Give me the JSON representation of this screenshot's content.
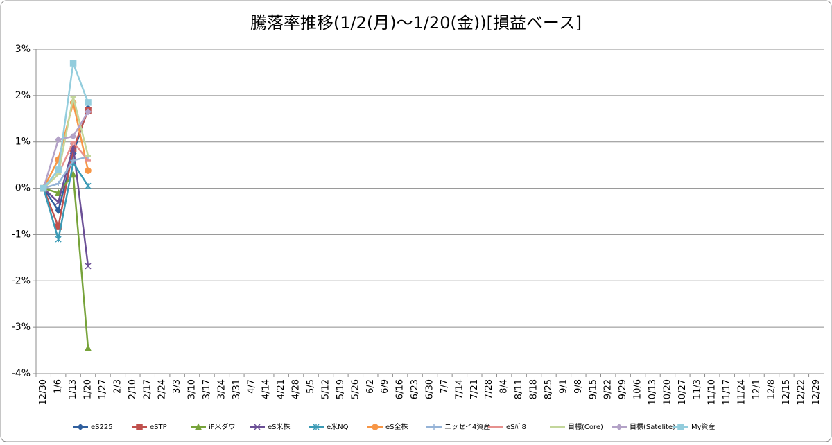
{
  "chart_data": {
    "type": "line",
    "title": "騰落率推移(1/2(月)～1/20(金))[損益ベース]",
    "categories": [
      "12/30",
      "1/6",
      "1/13",
      "1/20",
      "1/27",
      "2/3",
      "2/10",
      "2/17",
      "2/24",
      "3/3",
      "3/10",
      "3/17",
      "3/24",
      "3/31",
      "4/7",
      "4/14",
      "4/21",
      "4/28",
      "5/5",
      "5/12",
      "5/19",
      "5/26",
      "6/2",
      "6/9",
      "6/16",
      "6/23",
      "6/30",
      "7/7",
      "7/14",
      "7/21",
      "7/28",
      "8/4",
      "8/11",
      "8/18",
      "8/25",
      "9/1",
      "9/8",
      "9/15",
      "9/22",
      "9/29",
      "10/6",
      "10/13",
      "10/20",
      "10/27",
      "11/3",
      "11/10",
      "11/17",
      "11/24",
      "12/1",
      "12/8",
      "12/15",
      "12/22",
      "12/29"
    ],
    "ylim": [
      -4,
      3
    ],
    "yticks": [
      {
        "value": -4,
        "label": "-4%"
      },
      {
        "value": -3,
        "label": "-3%"
      },
      {
        "value": -2,
        "label": "-2%"
      },
      {
        "value": -1,
        "label": "-1%"
      },
      {
        "value": 0,
        "label": "0%"
      },
      {
        "value": 1,
        "label": "1%"
      },
      {
        "value": 2,
        "label": "2%"
      },
      {
        "value": 3,
        "label": "3%"
      }
    ],
    "grid": true,
    "legend": "bottom",
    "series": [
      {
        "name": "eS225",
        "color": "#2f5f9e",
        "values": [
          0,
          -0.48,
          0.75,
          1.73,
          null,
          null,
          null,
          null,
          null,
          null,
          null,
          null,
          null,
          null,
          null,
          null,
          null,
          null,
          null,
          null,
          null,
          null,
          null,
          null,
          null,
          null,
          null,
          null,
          null,
          null,
          null,
          null,
          null,
          null,
          null,
          null,
          null,
          null,
          null,
          null,
          null,
          null,
          null,
          null,
          null,
          null,
          null,
          null,
          null,
          null,
          null,
          null,
          null
        ]
      },
      {
        "name": "eSTP",
        "color": "#c0504d",
        "values": [
          0,
          -0.83,
          0.85,
          1.68,
          null,
          null,
          null,
          null,
          null,
          null,
          null,
          null,
          null,
          null,
          null,
          null,
          null,
          null,
          null,
          null,
          null,
          null,
          null,
          null,
          null,
          null,
          null,
          null,
          null,
          null,
          null,
          null,
          null,
          null,
          null,
          null,
          null,
          null,
          null,
          null,
          null,
          null,
          null,
          null,
          null,
          null,
          null,
          null,
          null,
          null,
          null,
          null,
          null
        ]
      },
      {
        "name": "iF米ダウ",
        "color": "#77a33a",
        "values": [
          0,
          -0.1,
          0.3,
          -3.45,
          null,
          null,
          null,
          null,
          null,
          null,
          null,
          null,
          null,
          null,
          null,
          null,
          null,
          null,
          null,
          null,
          null,
          null,
          null,
          null,
          null,
          null,
          null,
          null,
          null,
          null,
          null,
          null,
          null,
          null,
          null,
          null,
          null,
          null,
          null,
          null,
          null,
          null,
          null,
          null,
          null,
          null,
          null,
          null,
          null,
          null,
          null,
          null,
          null
        ]
      },
      {
        "name": "eS米株",
        "color": "#6b4f96",
        "values": [
          0,
          -0.3,
          0.9,
          -1.68,
          null,
          null,
          null,
          null,
          null,
          null,
          null,
          null,
          null,
          null,
          null,
          null,
          null,
          null,
          null,
          null,
          null,
          null,
          null,
          null,
          null,
          null,
          null,
          null,
          null,
          null,
          null,
          null,
          null,
          null,
          null,
          null,
          null,
          null,
          null,
          null,
          null,
          null,
          null,
          null,
          null,
          null,
          null,
          null,
          null,
          null,
          null,
          null,
          null
        ]
      },
      {
        "name": "e米NQ",
        "color": "#3a9ab5",
        "values": [
          0,
          -1.1,
          0.55,
          0.05,
          null,
          null,
          null,
          null,
          null,
          null,
          null,
          null,
          null,
          null,
          null,
          null,
          null,
          null,
          null,
          null,
          null,
          null,
          null,
          null,
          null,
          null,
          null,
          null,
          null,
          null,
          null,
          null,
          null,
          null,
          null,
          null,
          null,
          null,
          null,
          null,
          null,
          null,
          null,
          null,
          null,
          null,
          null,
          null,
          null,
          null,
          null,
          null,
          null
        ]
      },
      {
        "name": "eS全株",
        "color": "#f79646",
        "values": [
          0,
          0.62,
          1.85,
          0.38,
          null,
          null,
          null,
          null,
          null,
          null,
          null,
          null,
          null,
          null,
          null,
          null,
          null,
          null,
          null,
          null,
          null,
          null,
          null,
          null,
          null,
          null,
          null,
          null,
          null,
          null,
          null,
          null,
          null,
          null,
          null,
          null,
          null,
          null,
          null,
          null,
          null,
          null,
          null,
          null,
          null,
          null,
          null,
          null,
          null,
          null,
          null,
          null,
          null
        ]
      },
      {
        "name": "ニッセイ4資産",
        "color": "#95b3d7",
        "values": [
          0,
          0.1,
          0.6,
          0.68,
          null,
          null,
          null,
          null,
          null,
          null,
          null,
          null,
          null,
          null,
          null,
          null,
          null,
          null,
          null,
          null,
          null,
          null,
          null,
          null,
          null,
          null,
          null,
          null,
          null,
          null,
          null,
          null,
          null,
          null,
          null,
          null,
          null,
          null,
          null,
          null,
          null,
          null,
          null,
          null,
          null,
          null,
          null,
          null,
          null,
          null,
          null,
          null,
          null
        ]
      },
      {
        "name": "eSﾊﾞ8",
        "color": "#e6918e",
        "values": [
          0,
          0.3,
          1.0,
          0.6,
          null,
          null,
          null,
          null,
          null,
          null,
          null,
          null,
          null,
          null,
          null,
          null,
          null,
          null,
          null,
          null,
          null,
          null,
          null,
          null,
          null,
          null,
          null,
          null,
          null,
          null,
          null,
          null,
          null,
          null,
          null,
          null,
          null,
          null,
          null,
          null,
          null,
          null,
          null,
          null,
          null,
          null,
          null,
          null,
          null,
          null,
          null,
          null,
          null
        ]
      },
      {
        "name": "目標(Core)",
        "color": "#c3d69b",
        "values": [
          0,
          0.3,
          1.97,
          0.7,
          null,
          null,
          null,
          null,
          null,
          null,
          null,
          null,
          null,
          null,
          null,
          null,
          null,
          null,
          null,
          null,
          null,
          null,
          null,
          null,
          null,
          null,
          null,
          null,
          null,
          null,
          null,
          null,
          null,
          null,
          null,
          null,
          null,
          null,
          null,
          null,
          null,
          null,
          null,
          null,
          null,
          null,
          null,
          null,
          null,
          null,
          null,
          null,
          null
        ]
      },
      {
        "name": "目標(Satelite)",
        "color": "#b3a2c7",
        "values": [
          0,
          1.05,
          1.12,
          1.65,
          null,
          null,
          null,
          null,
          null,
          null,
          null,
          null,
          null,
          null,
          null,
          null,
          null,
          null,
          null,
          null,
          null,
          null,
          null,
          null,
          null,
          null,
          null,
          null,
          null,
          null,
          null,
          null,
          null,
          null,
          null,
          null,
          null,
          null,
          null,
          null,
          null,
          null,
          null,
          null,
          null,
          null,
          null,
          null,
          null,
          null,
          null,
          null,
          null
        ]
      },
      {
        "name": "My資産",
        "color": "#93cddd",
        "values": [
          0,
          0.4,
          2.7,
          1.85,
          null,
          null,
          null,
          null,
          null,
          null,
          null,
          null,
          null,
          null,
          null,
          null,
          null,
          null,
          null,
          null,
          null,
          null,
          null,
          null,
          null,
          null,
          null,
          null,
          null,
          null,
          null,
          null,
          null,
          null,
          null,
          null,
          null,
          null,
          null,
          null,
          null,
          null,
          null,
          null,
          null,
          null,
          null,
          null,
          null,
          null,
          null,
          null,
          null
        ]
      }
    ]
  }
}
